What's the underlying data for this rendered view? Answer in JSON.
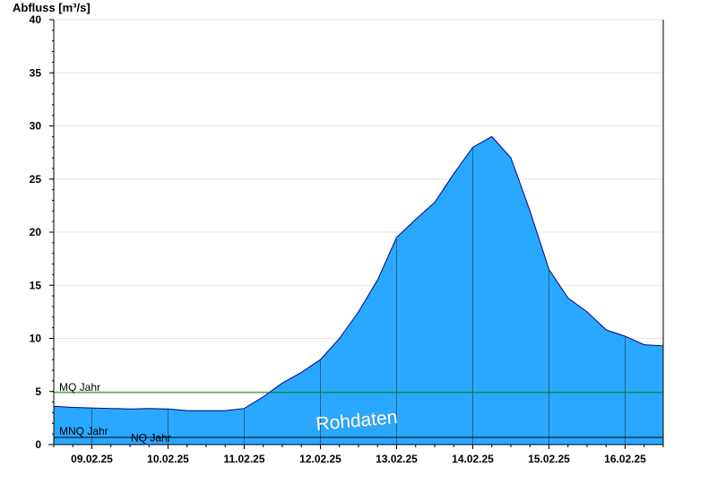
{
  "chart_data": {
    "type": "area",
    "title": "",
    "ylabel": "Abfluss [m³/s]",
    "xlabel": "",
    "ylim": [
      0,
      40
    ],
    "yticks": [
      0,
      5,
      10,
      15,
      20,
      25,
      30,
      35,
      40
    ],
    "ytick_labels": [
      "0",
      "5",
      "10",
      "15",
      "20",
      "25",
      "30",
      "35",
      "40"
    ],
    "xlim": [
      "08.02.25 12:00",
      "16.02.25 12:00"
    ],
    "xtick_labels": [
      "09.02.25",
      "10.02.25",
      "11.02.25",
      "12.02.25",
      "13.02.25",
      "14.02.25",
      "15.02.25",
      "16.02.25"
    ],
    "grid": true,
    "colors": {
      "fill": "#2aa8ff",
      "outline": "#00008b",
      "mq": "#008000",
      "nq": "#000000",
      "grid": "#e4e4e4"
    },
    "reference_lines": [
      {
        "label": "MQ Jahr",
        "value": 4.9
      },
      {
        "label": "MNQ Jahr",
        "value": 0.75
      },
      {
        "label": "NQ Jahr",
        "value": 0.72
      }
    ],
    "watermark": "Rohdaten",
    "series": [
      {
        "x": [
          "08.02.25 12:00",
          "08.02.25 18:00",
          "09.02.25 00:00",
          "09.02.25 06:00",
          "09.02.25 12:00",
          "09.02.25 18:00",
          "10.02.25 00:00",
          "10.02.25 06:00",
          "10.02.25 12:00",
          "10.02.25 18:00",
          "11.02.25 00:00",
          "11.02.25 06:00",
          "11.02.25 12:00",
          "11.02.25 18:00",
          "12.02.25 00:00",
          "12.02.25 06:00",
          "12.02.25 12:00",
          "12.02.25 18:00",
          "13.02.25 00:00",
          "13.02.25 06:00",
          "13.02.25 12:00",
          "13.02.25 18:00",
          "14.02.25 00:00",
          "14.02.25 06:00",
          "14.02.25 12:00",
          "14.02.25 18:00",
          "15.02.25 00:00",
          "15.02.25 06:00",
          "15.02.25 12:00",
          "15.02.25 18:00",
          "16.02.25 00:00",
          "16.02.25 06:00",
          "16.02.25 12:00"
        ],
        "y": [
          3.6,
          3.5,
          3.45,
          3.4,
          3.35,
          3.4,
          3.35,
          3.2,
          3.2,
          3.2,
          3.4,
          4.5,
          5.8,
          6.8,
          8.0,
          10.0,
          12.5,
          15.5,
          19.5,
          21.2,
          22.8,
          25.5,
          28.0,
          29.0,
          27.0,
          22.0,
          16.5,
          13.8,
          12.5,
          10.8,
          10.2,
          9.4,
          9.3
        ]
      }
    ]
  }
}
